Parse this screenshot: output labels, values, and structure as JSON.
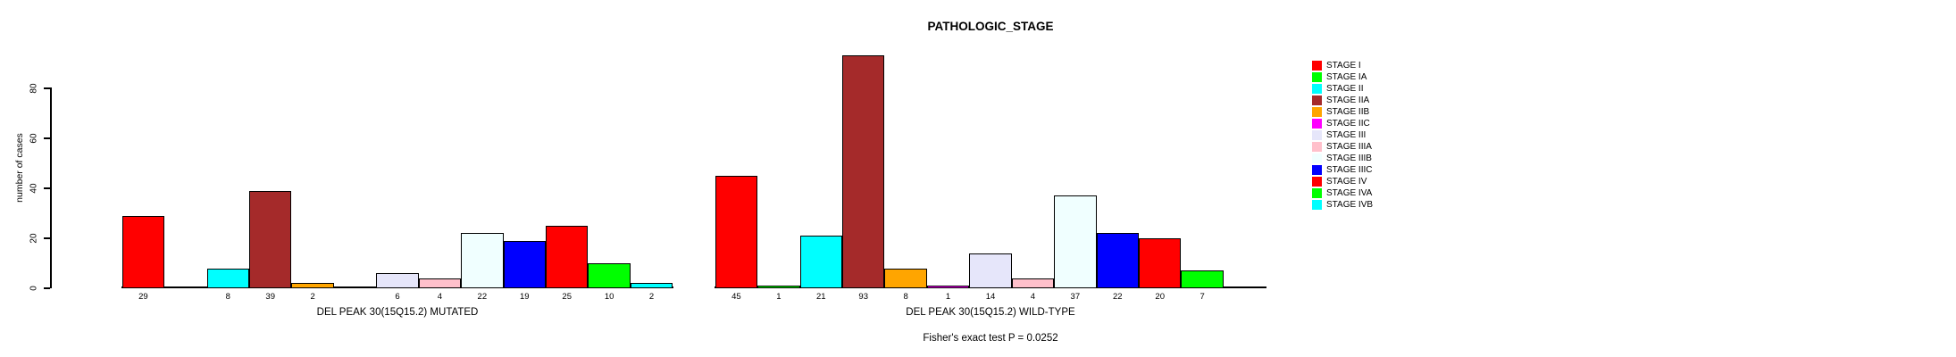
{
  "figure": {
    "title": "PATHOLOGIC_STAGE",
    "annotation": "Fisher's exact test P = 0.0252"
  },
  "chart_data": {
    "type": "bar",
    "title": "PATHOLOGIC_STAGE",
    "xlabel": "",
    "ylabel": "number of cases",
    "ylim": [
      0,
      93
    ],
    "yticks": [
      0,
      20,
      40,
      60,
      80
    ],
    "grid": false,
    "legend_position": "right",
    "categories": [
      "STAGE I",
      "STAGE IA",
      "STAGE II",
      "STAGE IIA",
      "STAGE IIB",
      "STAGE IIC",
      "STAGE III",
      "STAGE IIIA",
      "STAGE IIIB",
      "STAGE IIIC",
      "STAGE IV",
      "STAGE IVA",
      "STAGE IVB"
    ],
    "colors": [
      "#FF0000",
      "#00FF00",
      "#00FFFF",
      "#A52A2A",
      "#FFA500",
      "#FF00FF",
      "#E6E6FA",
      "#FFC0CB",
      "#F0FFFF",
      "#0000FF",
      "#FF0000",
      "#00FF00",
      "#00FFFF"
    ],
    "series": [
      {
        "name": "DEL PEAK 30(15Q15.2) MUTATED",
        "values": [
          29,
          0,
          8,
          39,
          2,
          0,
          6,
          4,
          22,
          19,
          25,
          10,
          2
        ]
      },
      {
        "name": "DEL PEAK 30(15Q15.2) WILD-TYPE",
        "values": [
          45,
          1,
          21,
          93,
          8,
          1,
          14,
          4,
          37,
          22,
          20,
          7,
          0
        ]
      }
    ],
    "annotation": "Fisher's exact test P = 0.0252"
  }
}
